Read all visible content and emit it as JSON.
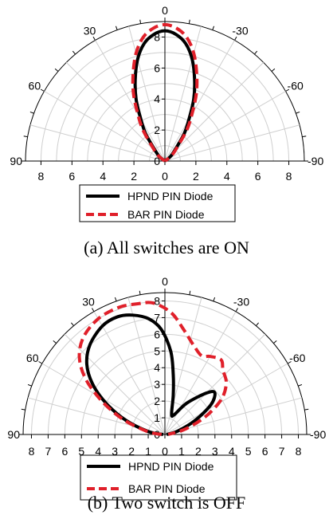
{
  "chart_data": [
    {
      "type": "polar-line",
      "caption": "(a) All switches are ON",
      "radial_range": [
        0,
        9
      ],
      "radial_ticks": [
        "0",
        "2",
        "4",
        "6",
        "8"
      ],
      "axis_ticks": [
        "0",
        "2",
        "4",
        "6",
        "8"
      ],
      "angle_ticks": [
        {
          "angle": 0,
          "label": "0"
        },
        {
          "angle": -30,
          "label": "30"
        },
        {
          "angle": -60,
          "label": "60"
        },
        {
          "angle": -90,
          "label": "90"
        },
        {
          "angle": 30,
          "label": "-30"
        },
        {
          "angle": 60,
          "label": "-60"
        },
        {
          "angle": 90,
          "label": "-90"
        }
      ],
      "legend_placement": "bottom-center",
      "series": [
        {
          "name": "HPND PIN Diode",
          "color": "#000000",
          "dash": "solid",
          "points": [
            {
              "angle": -90,
              "r": 0
            },
            {
              "angle": -50,
              "r": 0.5
            },
            {
              "angle": -40,
              "r": 1.2
            },
            {
              "angle": -35,
              "r": 2.2
            },
            {
              "angle": -30,
              "r": 3.1
            },
            {
              "angle": -25,
              "r": 4.4
            },
            {
              "angle": -20,
              "r": 5.6
            },
            {
              "angle": -15,
              "r": 6.8
            },
            {
              "angle": -10,
              "r": 7.7
            },
            {
              "angle": -5,
              "r": 8.2
            },
            {
              "angle": 0,
              "r": 8.4
            },
            {
              "angle": 5,
              "r": 8.2
            },
            {
              "angle": 10,
              "r": 7.7
            },
            {
              "angle": 15,
              "r": 6.8
            },
            {
              "angle": 20,
              "r": 5.6
            },
            {
              "angle": 25,
              "r": 4.4
            },
            {
              "angle": 30,
              "r": 3.1
            },
            {
              "angle": 35,
              "r": 2.2
            },
            {
              "angle": 40,
              "r": 1.2
            },
            {
              "angle": 50,
              "r": 0.5
            },
            {
              "angle": 90,
              "r": 0
            }
          ]
        },
        {
          "name": "BAR PIN Diode",
          "color": "#e0202a",
          "dash": "dashed",
          "points": [
            {
              "angle": -90,
              "r": 0
            },
            {
              "angle": -50,
              "r": 0.6
            },
            {
              "angle": -40,
              "r": 1.4
            },
            {
              "angle": -35,
              "r": 2.5
            },
            {
              "angle": -30,
              "r": 3.5
            },
            {
              "angle": -25,
              "r": 4.8
            },
            {
              "angle": -20,
              "r": 6.0
            },
            {
              "angle": -15,
              "r": 7.2
            },
            {
              "angle": -10,
              "r": 8.1
            },
            {
              "angle": -5,
              "r": 8.6
            },
            {
              "angle": 0,
              "r": 8.8
            },
            {
              "angle": 5,
              "r": 8.6
            },
            {
              "angle": 10,
              "r": 8.1
            },
            {
              "angle": 15,
              "r": 7.2
            },
            {
              "angle": 20,
              "r": 6.0
            },
            {
              "angle": 25,
              "r": 4.8
            },
            {
              "angle": 30,
              "r": 3.5
            },
            {
              "angle": 35,
              "r": 2.5
            },
            {
              "angle": 40,
              "r": 1.4
            },
            {
              "angle": 50,
              "r": 0.6
            },
            {
              "angle": 90,
              "r": 0
            }
          ]
        }
      ]
    },
    {
      "type": "polar-line",
      "caption": "(b) Two switch is OFF",
      "radial_range": [
        0,
        8.5
      ],
      "radial_ticks": [
        "0",
        "1",
        "2",
        "3",
        "4",
        "5",
        "6",
        "7",
        "8"
      ],
      "axis_ticks": [
        "0",
        "1",
        "2",
        "3",
        "4",
        "5",
        "6",
        "7",
        "8"
      ],
      "angle_ticks": [
        {
          "angle": 0,
          "label": "0"
        },
        {
          "angle": -30,
          "label": "30"
        },
        {
          "angle": -60,
          "label": "60"
        },
        {
          "angle": -90,
          "label": "90"
        },
        {
          "angle": 30,
          "label": "-30"
        },
        {
          "angle": 60,
          "label": "-60"
        },
        {
          "angle": 90,
          "label": "-90"
        }
      ],
      "legend_placement": "bottom-center",
      "series": [
        {
          "name": "HPND PIN Diode",
          "color": "#000000",
          "dash": "solid",
          "points": [
            {
              "angle": -90,
              "r": 0.1
            },
            {
              "angle": -80,
              "r": 1.0
            },
            {
              "angle": -70,
              "r": 2.5
            },
            {
              "angle": -62,
              "r": 4.0
            },
            {
              "angle": -55,
              "r": 5.3
            },
            {
              "angle": -48,
              "r": 6.3
            },
            {
              "angle": -40,
              "r": 7.0
            },
            {
              "angle": -30,
              "r": 7.5
            },
            {
              "angle": -22,
              "r": 7.6
            },
            {
              "angle": -15,
              "r": 7.4
            },
            {
              "angle": -8,
              "r": 7.0
            },
            {
              "angle": -2,
              "r": 6.3
            },
            {
              "angle": 4,
              "r": 5.0
            },
            {
              "angle": 8,
              "r": 3.6
            },
            {
              "angle": 12,
              "r": 2.4
            },
            {
              "angle": 18,
              "r": 1.3
            },
            {
              "angle": 25,
              "r": 1.3
            },
            {
              "angle": 35,
              "r": 2.3
            },
            {
              "angle": 45,
              "r": 3.5
            },
            {
              "angle": 50,
              "r": 3.9
            },
            {
              "angle": 57,
              "r": 3.3
            },
            {
              "angle": 65,
              "r": 2.0
            },
            {
              "angle": 75,
              "r": 0.8
            },
            {
              "angle": 90,
              "r": 0.1
            }
          ]
        },
        {
          "name": "BAR PIN Diode",
          "color": "#e0202a",
          "dash": "dashed",
          "points": [
            {
              "angle": -90,
              "r": 0.2
            },
            {
              "angle": -80,
              "r": 1.1
            },
            {
              "angle": -70,
              "r": 2.7
            },
            {
              "angle": -62,
              "r": 4.3
            },
            {
              "angle": -55,
              "r": 5.8
            },
            {
              "angle": -48,
              "r": 6.9
            },
            {
              "angle": -40,
              "r": 7.6
            },
            {
              "angle": -30,
              "r": 8.0
            },
            {
              "angle": -20,
              "r": 8.1
            },
            {
              "angle": -12,
              "r": 8.0
            },
            {
              "angle": -5,
              "r": 7.9
            },
            {
              "angle": 3,
              "r": 7.3
            },
            {
              "angle": 10,
              "r": 6.4
            },
            {
              "angle": 18,
              "r": 5.6
            },
            {
              "angle": 25,
              "r": 5.2
            },
            {
              "angle": 30,
              "r": 5.4
            },
            {
              "angle": 37,
              "r": 5.6
            },
            {
              "angle": 42,
              "r": 5.2
            },
            {
              "angle": 50,
              "r": 4.8
            },
            {
              "angle": 58,
              "r": 4.0
            },
            {
              "angle": 66,
              "r": 2.7
            },
            {
              "angle": 75,
              "r": 1.3
            },
            {
              "angle": 90,
              "r": 0.2
            }
          ]
        }
      ]
    }
  ]
}
